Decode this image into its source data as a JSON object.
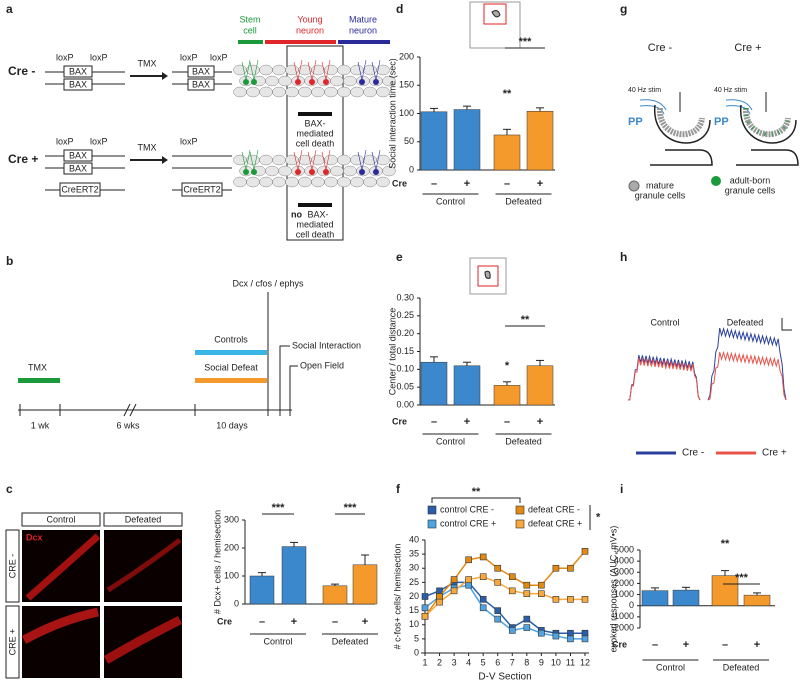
{
  "panel_labels": [
    "a",
    "b",
    "c",
    "d",
    "e",
    "f",
    "g",
    "h",
    "i"
  ],
  "panel_a": {
    "column_headers": [
      [
        "Stem",
        "cell"
      ],
      [
        "Young",
        "neuron"
      ],
      [
        "Mature",
        "neuron"
      ]
    ],
    "rows": [
      "Cre -",
      "Cre +"
    ],
    "loxp": "loxP",
    "bax": "BAX",
    "tmx": "TMX",
    "creert2": "CreERT2",
    "death_text": [
      "BAX-",
      "mediated",
      "cell death"
    ],
    "no_death": {
      "bold": "no",
      "lines": [
        "BAX-",
        "mediated",
        "cell death"
      ]
    }
  },
  "panel_b": {
    "tmx": "TMX",
    "durations": [
      "1 wk",
      "6 wks",
      "10 days"
    ],
    "readout": "Dcx / cfos / ephys",
    "groups": [
      "Controls",
      "Social Defeat"
    ],
    "tests": [
      "Social Interaction",
      "Open Field"
    ]
  },
  "panel_c_images": {
    "columns": [
      "Control",
      "Defeated"
    ],
    "rows": [
      "CRE -",
      "CRE +"
    ],
    "stain": "Dcx"
  },
  "panel_g": {
    "conditions": [
      "Cre -",
      "Cre +"
    ],
    "stim": "40 Hz stim",
    "pathway": "PP",
    "legend": [
      [
        "mature",
        "granule cells"
      ],
      [
        "adult-born",
        "granule cells"
      ]
    ]
  },
  "panel_h": {
    "conditions": [
      "Control",
      "Defeated"
    ],
    "legend": [
      "Cre -",
      "Cre +"
    ]
  },
  "chart_data": [
    {
      "type": "bar",
      "y_label": "# Dcx+ cells / hemisection",
      "x_row_label": "Cre",
      "categories": [
        "–",
        "+",
        "–",
        "+"
      ],
      "groups": [
        "Control",
        "Defeated"
      ],
      "values": [
        100,
        205,
        65,
        140
      ],
      "errors": [
        12,
        15,
        6,
        35
      ],
      "colors": [
        "#3b88cc",
        "#3b88cc",
        "#f4992b",
        "#f4992b"
      ],
      "ylim": [
        0,
        300
      ],
      "yticks": [
        0,
        100,
        200,
        300
      ],
      "annotations": [
        "***",
        "***"
      ]
    },
    {
      "type": "bar",
      "y_label": "Social interaction time (sec)",
      "x_row_label": "Cre",
      "categories": [
        "–",
        "+",
        "–",
        "+"
      ],
      "groups": [
        "Control",
        "Defeated"
      ],
      "values": [
        103,
        107,
        62,
        104
      ],
      "errors": [
        6,
        6,
        10,
        6
      ],
      "colors": [
        "#3b88cc",
        "#3b88cc",
        "#f4992b",
        "#f4992b"
      ],
      "ylim": [
        0,
        200
      ],
      "yticks": [
        0,
        50,
        100,
        150,
        200
      ],
      "annotations": [
        "**",
        "***"
      ]
    },
    {
      "type": "bar",
      "y_label": "Center / total distance",
      "x_row_label": "Cre",
      "categories": [
        "–",
        "+",
        "–",
        "+"
      ],
      "groups": [
        "Control",
        "Defeated"
      ],
      "values": [
        0.12,
        0.11,
        0.055,
        0.11
      ],
      "errors": [
        0.015,
        0.01,
        0.01,
        0.015
      ],
      "colors": [
        "#3b88cc",
        "#3b88cc",
        "#f4992b",
        "#f4992b"
      ],
      "ylim": [
        0,
        0.3
      ],
      "yticks": [
        {
          "value": 0,
          "label": "0.00"
        },
        0.05,
        {
          "value": 0.1,
          "label": "0.10"
        },
        0.15,
        {
          "value": 0.2,
          "label": "0.20"
        },
        0.25,
        {
          "value": 0.3,
          "label": "0.30"
        }
      ],
      "annotations": [
        "*",
        "**"
      ]
    },
    {
      "type": "line",
      "x_label": "D-V Section",
      "y_label": "# c-fos+ cells/ hemisection",
      "x": [
        1,
        2,
        3,
        4,
        5,
        6,
        7,
        8,
        9,
        10,
        11,
        12
      ],
      "xlim": [
        1,
        12
      ],
      "xticks": [
        1,
        2,
        3,
        4,
        5,
        6,
        7,
        8,
        9,
        10,
        11,
        12
      ],
      "ylim": [
        0,
        40
      ],
      "yticks": [
        0,
        5,
        10,
        15,
        20,
        25,
        30,
        35,
        40
      ],
      "series": [
        {
          "name": "control CRE -",
          "color": "#2a5ea8",
          "values": [
            20,
            22,
            25,
            25,
            19,
            15,
            9,
            12,
            8,
            7,
            7,
            7
          ]
        },
        {
          "name": "control CRE +",
          "color": "#4fa3e0",
          "values": [
            16,
            20,
            23,
            24,
            16,
            12,
            8,
            9,
            7,
            6,
            5,
            5
          ]
        },
        {
          "name": "defeat CRE -",
          "color": "#e08a12",
          "values": [
            13,
            20,
            26,
            33,
            34,
            30,
            27,
            24,
            24,
            30,
            30,
            36
          ]
        },
        {
          "name": "defeat CRE +",
          "color": "#f7a83e",
          "values": [
            13,
            18,
            22,
            26,
            27,
            25,
            22,
            21,
            21,
            19,
            19,
            19
          ]
        }
      ],
      "annotations": [
        "**",
        "*"
      ]
    },
    {
      "type": "bar",
      "y_label": "evoked responses  (AUC, mV•s)",
      "x_row_label": "Cre",
      "categories": [
        "–",
        "+",
        "–",
        "+"
      ],
      "groups": [
        "Control",
        "Defeated"
      ],
      "values": [
        1350,
        1400,
        2700,
        950
      ],
      "errors": [
        250,
        250,
        450,
        200
      ],
      "colors": [
        "#3b88cc",
        "#3b88cc",
        "#f4992b",
        "#f4992b"
      ],
      "ylim": [
        -2000,
        5000
      ],
      "yticks": [
        -2000,
        -1000,
        0,
        1000,
        2000,
        3000,
        4000,
        5000
      ],
      "annotations": [
        "**",
        "***"
      ]
    }
  ]
}
